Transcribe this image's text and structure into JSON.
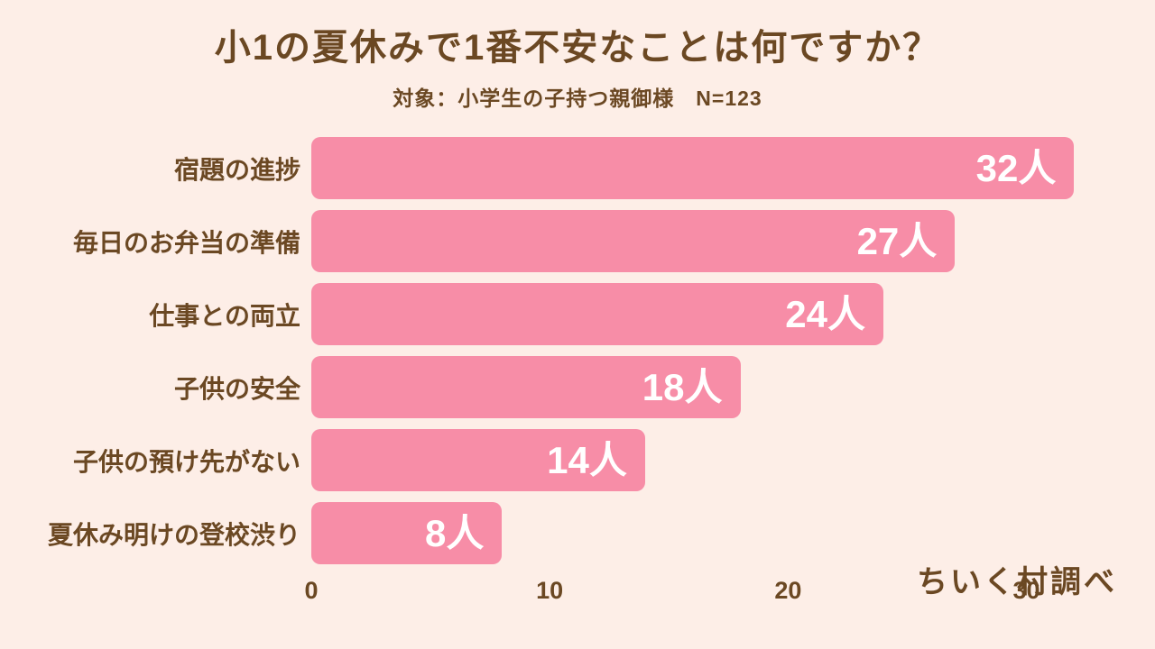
{
  "chart_data": {
    "type": "bar",
    "orientation": "horizontal",
    "title": "小1の夏休みで1番不安なことは何ですか？",
    "subtitle": "対象：小学生の子持つ親御様　N=123",
    "categories": [
      "宿題の進捗",
      "毎日のお弁当の準備",
      "仕事との両立",
      "子供の安全",
      "子供の預け先がない",
      "夏休み明けの登校渋り"
    ],
    "values": [
      32,
      27,
      24,
      18,
      14,
      8
    ],
    "value_labels": [
      "32人",
      "27人",
      "24人",
      "18人",
      "14人",
      "8人"
    ],
    "unit": "人",
    "x_ticks": [
      0,
      10,
      20,
      30
    ],
    "xlim": [
      0,
      33.5
    ],
    "grid": false,
    "legend": false,
    "source_note": "ちいく村調べ",
    "colors": {
      "background": "#fdeee7",
      "bar": "#f78da7",
      "text": "#6b4823",
      "value_label": "#ffffff"
    }
  }
}
